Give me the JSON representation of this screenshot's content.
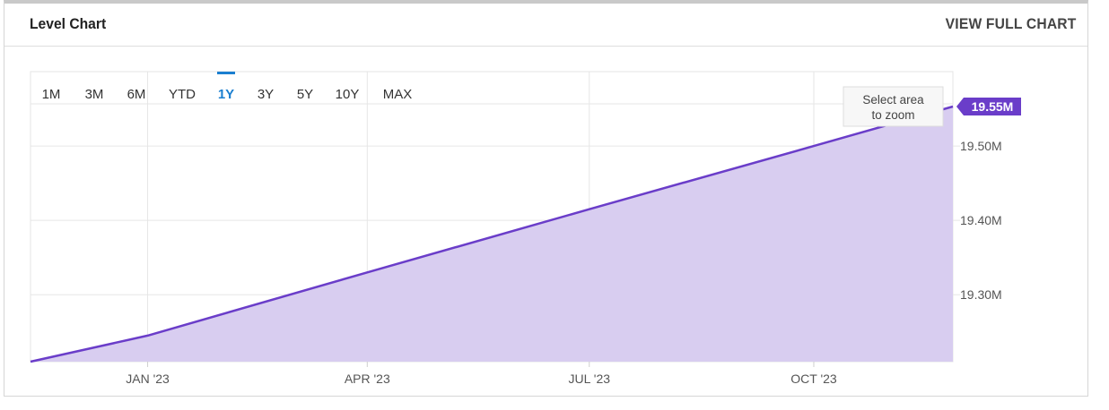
{
  "header": {
    "title": "Level Chart",
    "full_chart_link": "VIEW FULL CHART"
  },
  "ranges": {
    "options": [
      "1M",
      "3M",
      "6M",
      "YTD",
      "1Y",
      "3Y",
      "5Y",
      "10Y",
      "MAX"
    ],
    "selected": "1Y"
  },
  "zoom_hint": [
    "Select area",
    "to zoom"
  ],
  "colors": {
    "line": "#6a3dc9",
    "area": "#d8cdf0",
    "selected_range": "#1a7fd0",
    "badge": "#6a3dc9"
  },
  "chart_data": {
    "type": "area",
    "x": [
      "2022-11-14",
      "2023-01-01",
      "2023-04-01",
      "2023-07-01",
      "2023-10-01",
      "2023-11-27"
    ],
    "values": [
      19.21,
      19.245,
      19.33,
      19.415,
      19.5,
      19.553
    ],
    "x_ticks": [
      {
        "label": "JAN '23",
        "date": "2023-01-01"
      },
      {
        "label": "APR '23",
        "date": "2023-04-01"
      },
      {
        "label": "JUL '23",
        "date": "2023-07-01"
      },
      {
        "label": "OCT '23",
        "date": "2023-10-01"
      }
    ],
    "y_ticks": [
      {
        "label": "19.30M",
        "value": 19.3
      },
      {
        "label": "19.40M",
        "value": 19.4
      },
      {
        "label": "19.50M",
        "value": 19.5
      }
    ],
    "ylim": [
      19.21,
      19.6
    ],
    "last_value_label": "19.55M",
    "grid": true
  }
}
